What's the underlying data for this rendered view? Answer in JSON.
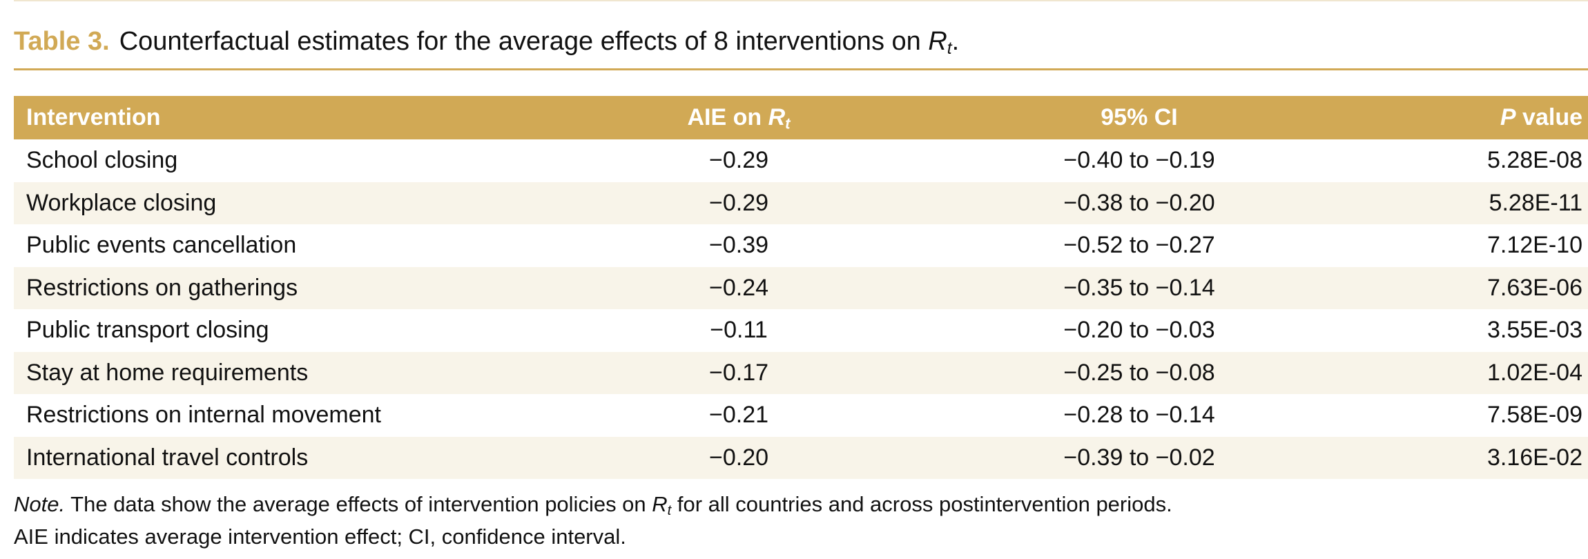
{
  "caption": {
    "label": "Table 3.",
    "text_before": "Counterfactual estimates for the average effects of 8 interventions on",
    "symbol": "R",
    "symbol_sub": "t",
    "text_after": "."
  },
  "columns": {
    "intervention": "Intervention",
    "aie_prefix": "AIE on",
    "aie_symbol": "R",
    "aie_sub": "t",
    "ci": "95% CI",
    "p_symbol": "P",
    "p_suffix": " value"
  },
  "rows": [
    {
      "intervention": "School closing",
      "aie": "−0.29",
      "ci": "−0.40 to −0.19",
      "p": "5.28E-08"
    },
    {
      "intervention": "Workplace closing",
      "aie": "−0.29",
      "ci": "−0.38 to −0.20",
      "p": "5.28E-11"
    },
    {
      "intervention": "Public events cancellation",
      "aie": "−0.39",
      "ci": "−0.52 to −0.27",
      "p": "7.12E-10"
    },
    {
      "intervention": "Restrictions on gatherings",
      "aie": "−0.24",
      "ci": "−0.35 to −0.14",
      "p": "7.63E-06"
    },
    {
      "intervention": "Public transport closing",
      "aie": "−0.11",
      "ci": "−0.20 to −0.03",
      "p": "3.55E-03"
    },
    {
      "intervention": "Stay at home requirements",
      "aie": "−0.17",
      "ci": "−0.25 to −0.08",
      "p": "1.02E-04"
    },
    {
      "intervention": "Restrictions on internal movement",
      "aie": "−0.21",
      "ci": "−0.28 to −0.14",
      "p": "7.58E-09"
    },
    {
      "intervention": "International travel controls",
      "aie": "−0.20",
      "ci": "−0.39 to −0.02",
      "p": "3.16E-02"
    }
  ],
  "note": {
    "label": "Note.",
    "line1_before": " The data show the average effects of intervention policies on ",
    "symbol": "R",
    "symbol_sub": "t",
    "line1_after": " for all countries and across postintervention periods.",
    "line2": "AIE indicates average intervention effect; CI, confidence interval."
  },
  "colors": {
    "accent": "#d1a955",
    "row_alt": "#f8f4e9",
    "header_text": "#ffffff"
  }
}
